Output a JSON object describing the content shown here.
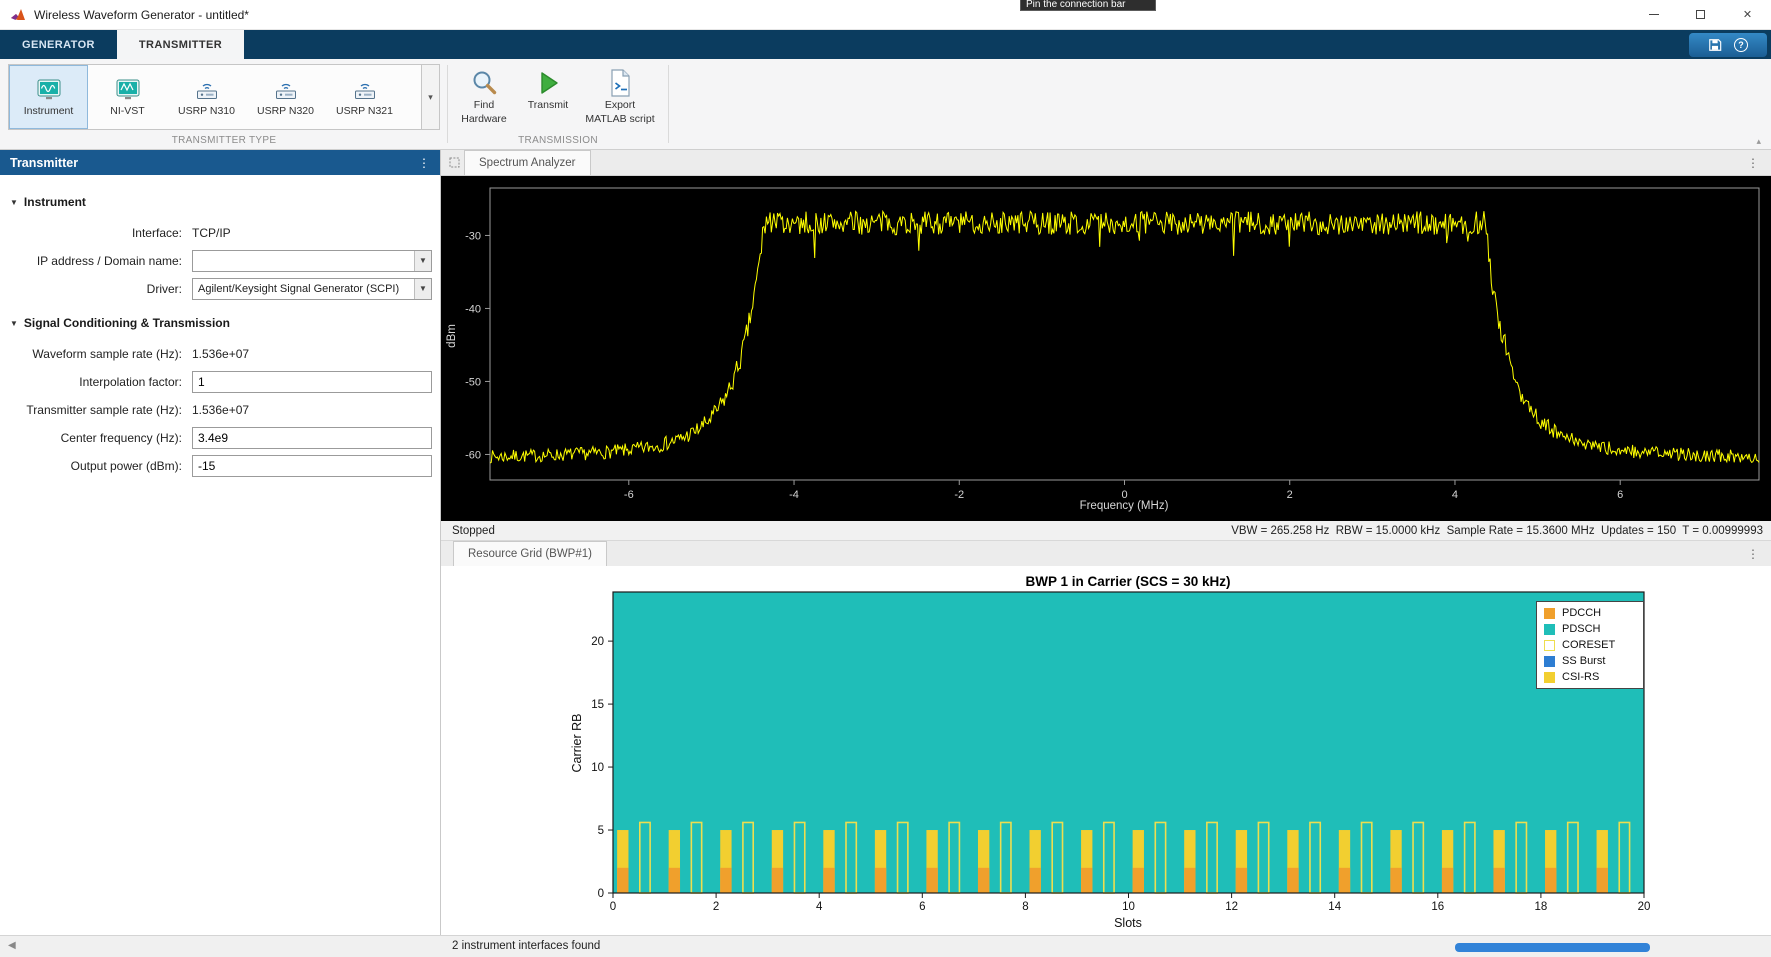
{
  "window": {
    "title": "Wireless Waveform Generator - untitled*"
  },
  "tooltip": {
    "text": "Pin the connection bar"
  },
  "ribbon": {
    "tabs": [
      {
        "label": "GENERATOR"
      },
      {
        "label": "TRANSMITTER",
        "active": true
      }
    ],
    "gallery": {
      "section_label": "TRANSMITTER TYPE",
      "items": [
        {
          "label": "Instrument",
          "icon": "instrument-icon",
          "selected": true
        },
        {
          "label": "NI-VST",
          "icon": "instrument-icon"
        },
        {
          "label": "USRP N310",
          "icon": "radio-icon"
        },
        {
          "label": "USRP N320",
          "icon": "radio-icon"
        },
        {
          "label": "USRP N321",
          "icon": "radio-icon"
        }
      ]
    },
    "transmission": {
      "section_label": "TRANSMISSION",
      "buttons": [
        {
          "name": "find-hardware",
          "lines": [
            "Find",
            "Hardware"
          ]
        },
        {
          "name": "transmit",
          "lines": [
            "Transmit"
          ]
        },
        {
          "name": "export-matlab-script",
          "lines": [
            "Export",
            "MATLAB script"
          ]
        }
      ]
    }
  },
  "left_panel": {
    "header": "Transmitter",
    "sections": [
      {
        "title": "Instrument",
        "fields": [
          {
            "label": "Interface:",
            "value": "TCP/IP",
            "type": "static"
          },
          {
            "label": "IP address / Domain name:",
            "value": "",
            "type": "combo"
          },
          {
            "label": "Driver:",
            "value": "Agilent/Keysight Signal Generator (SCPI)",
            "type": "combo"
          }
        ]
      },
      {
        "title": "Signal Conditioning & Transmission",
        "fields": [
          {
            "label": "Waveform sample rate (Hz):",
            "value": "1.536e+07",
            "type": "static"
          },
          {
            "label": "Interpolation factor:",
            "value": "1",
            "type": "input"
          },
          {
            "label": "Transmitter sample rate (Hz):",
            "value": "1.536e+07",
            "type": "static"
          },
          {
            "label": "Center frequency (Hz):",
            "value": "3.4e9",
            "type": "input"
          },
          {
            "label": "Output power (dBm):",
            "value": "-15",
            "type": "input"
          }
        ]
      }
    ]
  },
  "spectrum": {
    "tab_label": "Spectrum Analyzer",
    "status_left": "Stopped",
    "status_right": "VBW = 265.258 Hz  RBW = 15.0000 kHz  Sample Rate = 15.3600 MHz  Updates = 150  T = 0.00999993"
  },
  "resource_grid": {
    "tab_label": "Resource Grid (BWP#1)"
  },
  "status_bar": {
    "text": "2 instrument interfaces found"
  },
  "chart_data": [
    {
      "type": "line",
      "title": "Spectrum Analyzer",
      "xlabel": "Frequency (MHz)",
      "ylabel": "dBm",
      "xlim": [
        -7.68,
        7.68
      ],
      "ylim": [
        -63.5,
        -23.5
      ],
      "xticks": [
        -6,
        -4,
        -2,
        0,
        2,
        4,
        6
      ],
      "yticks": [
        -30,
        -40,
        -50,
        -60
      ],
      "grid": false,
      "background": "#000000",
      "axis_color": "#9a9a9a",
      "text_color": "#d4d4d4",
      "series": [
        {
          "name": "spectrum-trace",
          "color": "#ffff00",
          "shape": {
            "passband_mhz": [
              -4.33,
              4.33
            ],
            "passband_level_dbm": -28.3,
            "passband_noise_db": 1.6,
            "floor_level_dbm": -60.5,
            "edge_decay_mhz": 0.28,
            "floor_noise_db": 0.9
          }
        }
      ]
    },
    {
      "type": "resource-grid",
      "title": "BWP 1 in Carrier (SCS = 30 kHz)",
      "xlabel": "Slots",
      "ylabel": "Carrier RB",
      "xlim": [
        0,
        20
      ],
      "ylim": [
        0,
        23.9
      ],
      "xticks": [
        0,
        2,
        4,
        6,
        8,
        10,
        12,
        14,
        16,
        18,
        20
      ],
      "yticks": [
        0,
        5,
        10,
        15,
        20
      ],
      "plot_background": "#1fbeb8",
      "axis_color": "#1a1a1a",
      "text_color": "#111111",
      "legend_position": "northeast",
      "legend": [
        {
          "label": "PDCCH",
          "color": "#f0a02c",
          "style": "fill"
        },
        {
          "label": "PDSCH",
          "color": "#1fbeb8",
          "style": "fill"
        },
        {
          "label": "CORESET",
          "color": "#eede4e",
          "style": "outline"
        },
        {
          "label": "SS Burst",
          "color": "#2d7dd2",
          "style": "fill"
        },
        {
          "label": "CSI-RS",
          "color": "#f2cf30",
          "style": "fill"
        }
      ],
      "slots": 20,
      "per_slot_elements": [
        {
          "name": "csi-rs-bar",
          "color_key": "CSI-RS",
          "x_offset": [
            0.08,
            0.3
          ],
          "rb": [
            0,
            5.0
          ],
          "style": "fill"
        },
        {
          "name": "pdcch-bar",
          "color_key": "PDCCH",
          "x_offset": [
            0.08,
            0.3
          ],
          "rb": [
            0,
            2.0
          ],
          "style": "fill"
        },
        {
          "name": "coreset-outline",
          "color_key": "CORESET",
          "x_offset": [
            0.52,
            0.72
          ],
          "rb": [
            0,
            5.6
          ],
          "style": "outline"
        }
      ]
    }
  ]
}
